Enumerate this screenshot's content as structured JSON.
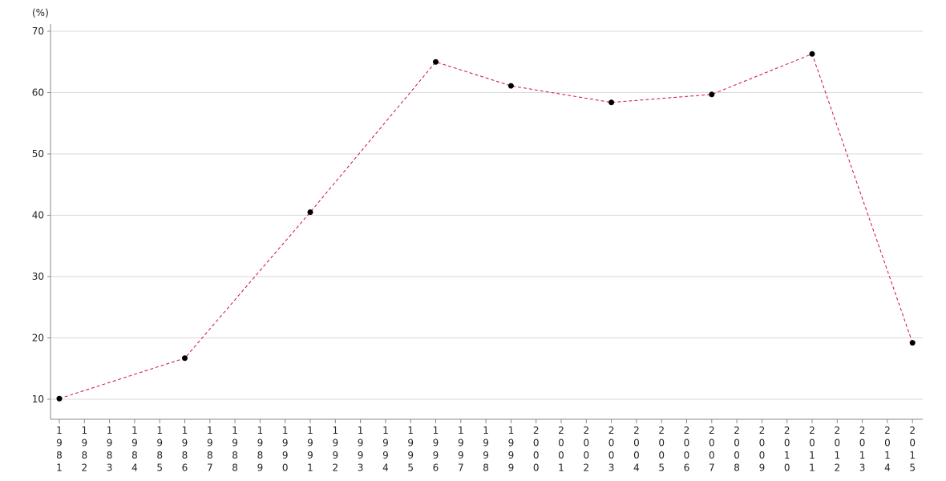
{
  "chart_data": {
    "type": "line",
    "ylabel": "(%)",
    "ylim": [
      8,
      71
    ],
    "yticks": [
      10,
      20,
      30,
      40,
      50,
      60,
      70
    ],
    "x_categories": [
      "1981",
      "1982",
      "1983",
      "1984",
      "1985",
      "1986",
      "1987",
      "1988",
      "1989",
      "1990",
      "1991",
      "1992",
      "1993",
      "1994",
      "1995",
      "1996",
      "1997",
      "1998",
      "1999",
      "2000",
      "2001",
      "2002",
      "2003",
      "2004",
      "2005",
      "2006",
      "2007",
      "2008",
      "2009",
      "2010",
      "2011",
      "2012",
      "2013",
      "2014",
      "2015"
    ],
    "series": [
      {
        "points": [
          {
            "x": "1981",
            "y": 10.1
          },
          {
            "x": "1986",
            "y": 16.7
          },
          {
            "x": "1991",
            "y": 40.5
          },
          {
            "x": "1996",
            "y": 65.0
          },
          {
            "x": "1999",
            "y": 61.1
          },
          {
            "x": "2003",
            "y": 58.4
          },
          {
            "x": "2007",
            "y": 59.7
          },
          {
            "x": "2011",
            "y": 66.3
          },
          {
            "x": "2015",
            "y": 19.2
          }
        ]
      }
    ],
    "grid": true,
    "colors": {
      "line": "#d0103a",
      "marker": "#000000",
      "grid": "#d9d9d9",
      "axis": "#888888"
    }
  }
}
